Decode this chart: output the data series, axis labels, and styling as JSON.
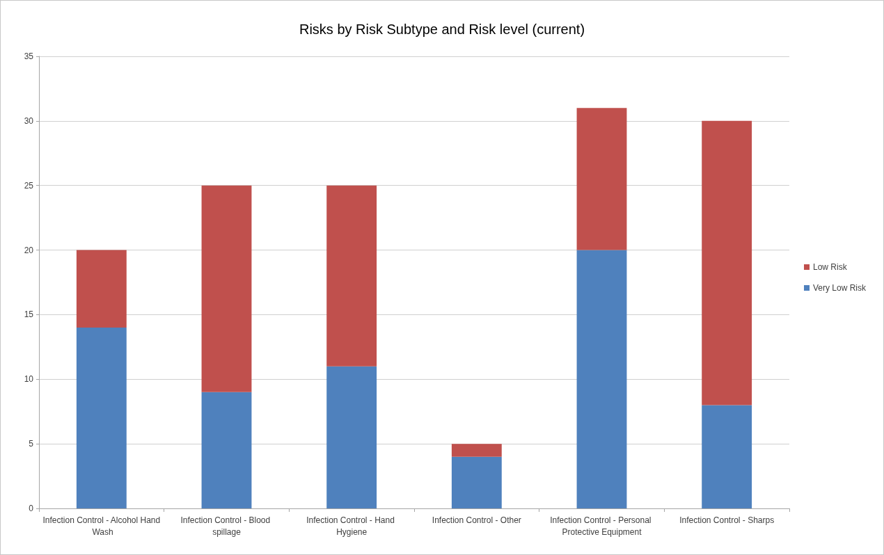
{
  "chart_data": {
    "type": "bar",
    "title": "Risks by Risk Subtype and Risk level (current)",
    "categories": [
      "Infection Control - Alcohol Hand Wash",
      "Infection Control - Blood spillage",
      "Infection Control - Hand Hygiene",
      "Infection Control - Other",
      "Infection Control - Personal Protective Equipment",
      "Infection Control - Sharps"
    ],
    "series": [
      {
        "name": "Very Low Risk",
        "color": "#4f81bd",
        "values": [
          14,
          9,
          11,
          4,
          20,
          8
        ]
      },
      {
        "name": "Low Risk",
        "color": "#c0504d",
        "values": [
          6,
          16,
          14,
          1,
          11,
          22
        ]
      }
    ],
    "stacked": true,
    "ylim": [
      0,
      35
    ],
    "yticks": [
      0,
      5,
      10,
      15,
      20,
      25,
      30,
      35
    ],
    "grid": "y",
    "legend": "right"
  }
}
